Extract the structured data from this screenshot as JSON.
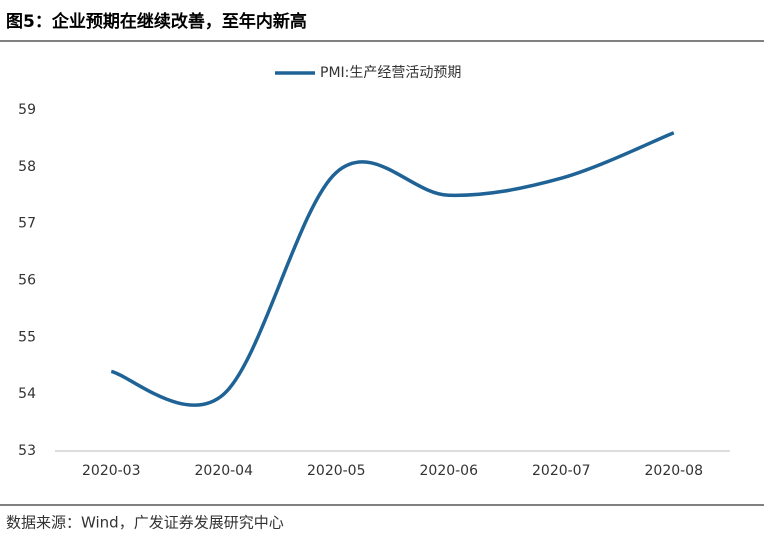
{
  "title": "图5：企业预期在继续改善，至年内新高",
  "source": "数据来源：Wind，广发证券发展研究中心",
  "chart_data": {
    "type": "line",
    "categories": [
      "2020-03",
      "2020-04",
      "2020-05",
      "2020-06",
      "2020-07",
      "2020-08"
    ],
    "series": [
      {
        "name": "PMI:生产经营活动预期",
        "color": "#1f6396",
        "values": [
          54.4,
          54.0,
          57.9,
          57.5,
          57.8,
          58.6
        ]
      }
    ],
    "ylim": [
      53,
      59
    ],
    "yticks": [
      53,
      54,
      55,
      56,
      57,
      58,
      59
    ],
    "grid": false
  }
}
